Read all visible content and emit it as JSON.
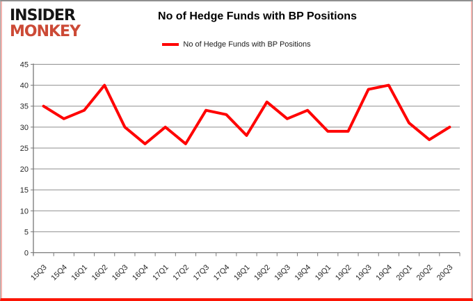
{
  "logo": {
    "line1": "INSIDER",
    "line2": "MONKEY"
  },
  "header": {
    "title": "No of Hedge Funds with BP Positions"
  },
  "legend": {
    "label": "No of Hedge Funds with BP Positions"
  },
  "colors": {
    "series_line": "#ff0000",
    "gridline": "#8e8e8e",
    "axis": "#767676",
    "axis_text": "#262626",
    "logo_insider": "#151515",
    "logo_monkey": "#cc4a36",
    "frame_bottom": "#fb1505",
    "frame_side_pink": "#f4b3ae"
  },
  "chart_data": {
    "type": "line",
    "title": "No of Hedge Funds with BP Positions",
    "categories": [
      "15Q3",
      "15Q4",
      "16Q1",
      "16Q2",
      "16Q3",
      "16Q4",
      "17Q1",
      "17Q2",
      "17Q3",
      "17Q4",
      "18Q1",
      "18Q2",
      "18Q3",
      "18Q4",
      "19Q1",
      "19Q2",
      "19Q3",
      "19Q4",
      "20Q1",
      "20Q2",
      "20Q3"
    ],
    "series": [
      {
        "name": "No of Hedge Funds with BP Positions",
        "values": [
          35,
          32,
          34,
          40,
          30,
          26,
          30,
          26,
          34,
          33,
          28,
          36,
          32,
          34,
          29,
          29,
          39,
          40,
          31,
          27,
          30
        ]
      }
    ],
    "ylim": [
      0,
      45
    ],
    "ytick_step": 5,
    "grid": true,
    "legend_position": "top",
    "x_label_rotation": -45
  }
}
